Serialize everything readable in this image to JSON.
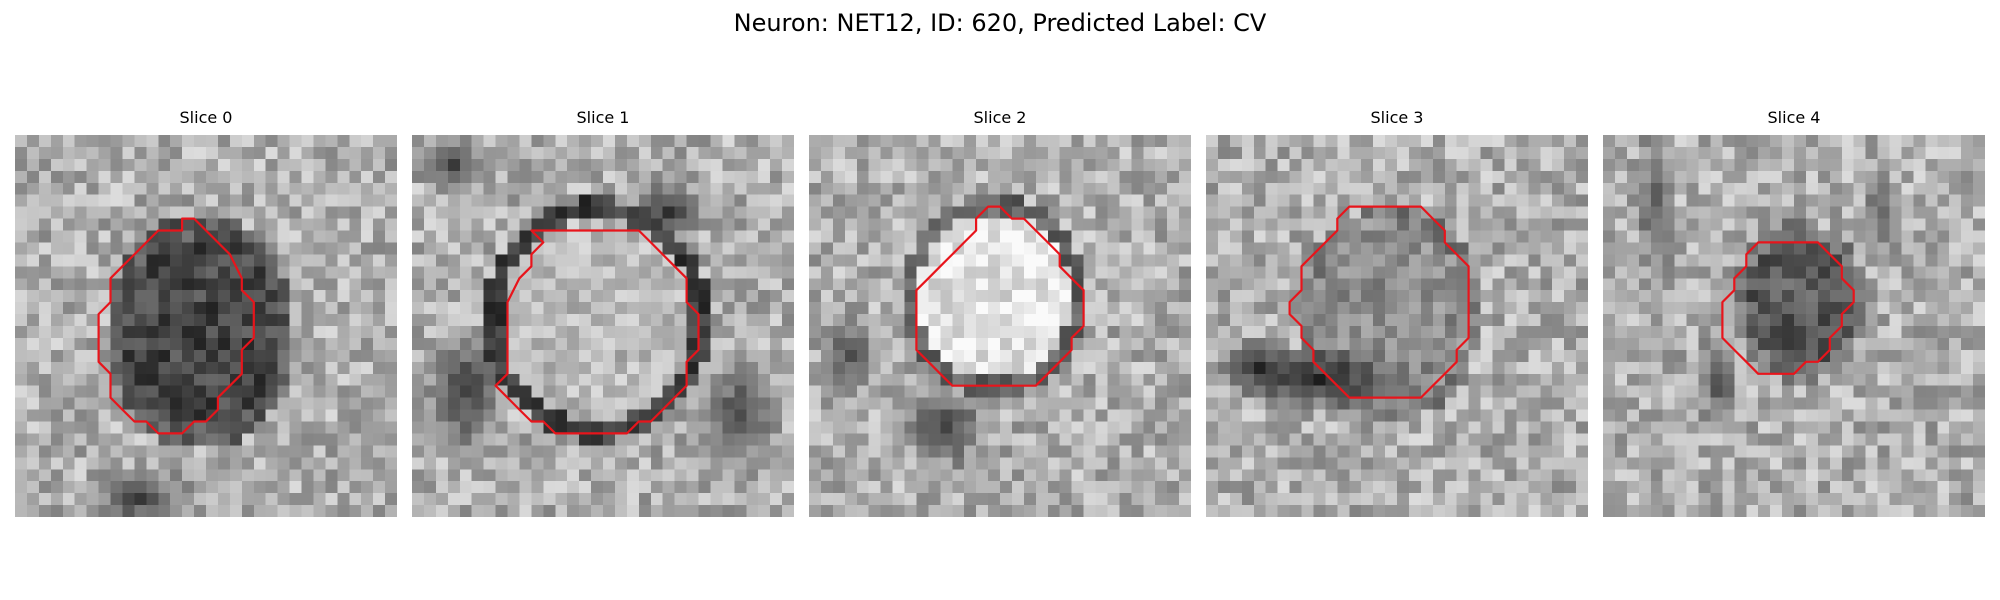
{
  "figure": {
    "title": "Neuron: NET12, ID: 620, Predicted Label: CV"
  },
  "overlay_color": "#e8141b",
  "panels": [
    {
      "title": "Slice 0",
      "variant": "dark-blob"
    },
    {
      "title": "Slice 1",
      "variant": "ring"
    },
    {
      "title": "Slice 2",
      "variant": "bright-center"
    },
    {
      "title": "Slice 3",
      "variant": "dark-crescent"
    },
    {
      "title": "Slice 4",
      "variant": "small-blob"
    }
  ]
}
